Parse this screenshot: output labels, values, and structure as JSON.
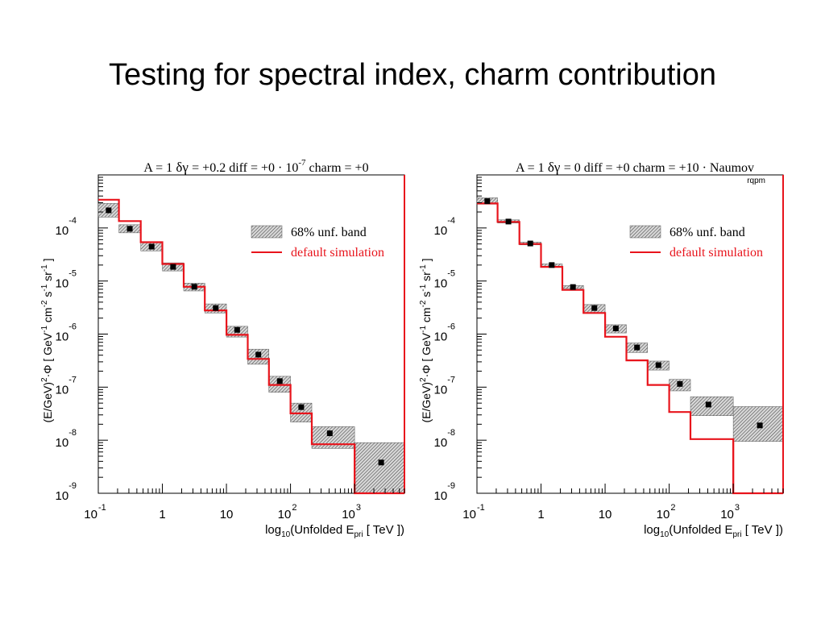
{
  "slide": {
    "title": "Testing for spectral index, charm contribution"
  },
  "chart_data": [
    {
      "type": "step",
      "panel_title": {
        "A": "A = 1",
        "dgamma": "= +0.2",
        "diff": "diff = +0 · 10",
        "diff_exp": "-7",
        "charm": "charm = +0"
      },
      "ylabel": {
        "p1": "(E/GeV)",
        "s1": "2",
        "p2": "·Φ [ GeV",
        "s2": "-1",
        "p3": " cm",
        "s3": "-2",
        "p4": " s",
        "s4": "-1",
        "p5": " sr",
        "s5": "-1",
        "p6": " ]"
      },
      "xlabel": {
        "pre": "log",
        "sub1": "10",
        "mid": "(Unfolded E",
        "sub2": "pri",
        "post": " [ TeV ])"
      },
      "xscale": "log",
      "yscale": "log",
      "xlim": [
        0.1,
        6000
      ],
      "ylim": [
        1e-09,
        0.001
      ],
      "x_ticks": [
        {
          "base": "10",
          "exp": "-1",
          "v": 0.1
        },
        {
          "base": "1",
          "exp": "",
          "v": 1
        },
        {
          "base": "10",
          "exp": "",
          "v": 10
        },
        {
          "base": "10",
          "exp": "2",
          "v": 100
        },
        {
          "base": "10",
          "exp": "3",
          "v": 1000
        }
      ],
      "y_ticks": [
        {
          "base": "10",
          "exp": "-4",
          "v": 0.0001
        },
        {
          "base": "10",
          "exp": "-5",
          "v": 1e-05
        },
        {
          "base": "10",
          "exp": "-6",
          "v": 1e-06
        },
        {
          "base": "10",
          "exp": "-7",
          "v": 1e-07
        },
        {
          "base": "10",
          "exp": "-8",
          "v": 1e-08
        },
        {
          "base": "10",
          "exp": "-9",
          "v": 1e-09
        }
      ],
      "legend": {
        "band_label": "68% unf. band",
        "line_label": "default simulation",
        "position": "top-right"
      },
      "colors": {
        "simulation": "#e8141c",
        "band": "#555555",
        "points": "#000000"
      },
      "band": [
        {
          "x_lo": 0.1,
          "x_hi": 0.21,
          "y_lo": 0.00016,
          "y_hi": 0.00029
        },
        {
          "x_lo": 0.21,
          "x_hi": 0.46,
          "y_lo": 8.1e-05,
          "y_hi": 0.000115
        },
        {
          "x_lo": 0.46,
          "x_hi": 1.0,
          "y_lo": 3.7e-05,
          "y_hi": 5.4e-05
        },
        {
          "x_lo": 1.0,
          "x_hi": 2.15,
          "y_lo": 1.55e-05,
          "y_hi": 2.2e-05
        },
        {
          "x_lo": 2.15,
          "x_hi": 4.6,
          "y_lo": 6.5e-06,
          "y_hi": 9.1e-06
        },
        {
          "x_lo": 4.6,
          "x_hi": 10,
          "y_lo": 2.5e-06,
          "y_hi": 3.7e-06
        },
        {
          "x_lo": 10,
          "x_hi": 21.5,
          "y_lo": 8.8e-07,
          "y_hi": 1.4e-06
        },
        {
          "x_lo": 21.5,
          "x_hi": 46,
          "y_lo": 2.7e-07,
          "y_hi": 5.2e-07
        },
        {
          "x_lo": 46,
          "x_hi": 100,
          "y_lo": 8e-08,
          "y_hi": 1.6e-07
        },
        {
          "x_lo": 100,
          "x_hi": 215,
          "y_lo": 2.2e-08,
          "y_hi": 5e-08
        },
        {
          "x_lo": 215,
          "x_hi": 1000,
          "y_lo": 7e-09,
          "y_hi": 1.8e-08
        },
        {
          "x_lo": 1000,
          "x_hi": 6000,
          "y_lo": 1e-09,
          "y_hi": 9e-09
        }
      ],
      "points": [
        {
          "x": 0.145,
          "y": 0.000215
        },
        {
          "x": 0.31,
          "y": 9.65e-05
        },
        {
          "x": 0.68,
          "y": 4.45e-05
        },
        {
          "x": 1.47,
          "y": 1.85e-05
        },
        {
          "x": 3.15,
          "y": 7.8e-06
        },
        {
          "x": 6.8,
          "y": 3.1e-06
        },
        {
          "x": 14.7,
          "y": 1.2e-06
        },
        {
          "x": 31.5,
          "y": 4.1e-07
        },
        {
          "x": 68,
          "y": 1.3e-07
        },
        {
          "x": 147,
          "y": 4.2e-08
        },
        {
          "x": 410,
          "y": 1.35e-08
        },
        {
          "x": 2600,
          "y": 3.8e-09
        }
      ],
      "simulation": [
        {
          "x_lo": 0.1,
          "x_hi": 0.21,
          "y": 0.00034
        },
        {
          "x_lo": 0.21,
          "x_hi": 0.46,
          "y": 0.000135
        },
        {
          "x_lo": 0.46,
          "x_hi": 1.0,
          "y": 5.4e-05
        },
        {
          "x_lo": 1.0,
          "x_hi": 2.15,
          "y": 2.1e-05
        },
        {
          "x_lo": 2.15,
          "x_hi": 4.6,
          "y": 7.8e-06
        },
        {
          "x_lo": 4.6,
          "x_hi": 10,
          "y": 2.8e-06
        },
        {
          "x_lo": 10,
          "x_hi": 21.5,
          "y": 9.7e-07
        },
        {
          "x_lo": 21.5,
          "x_hi": 46,
          "y": 3.4e-07
        },
        {
          "x_lo": 46,
          "x_hi": 100,
          "y": 1.1e-07
        },
        {
          "x_lo": 100,
          "x_hi": 215,
          "y": 3.2e-08
        },
        {
          "x_lo": 215,
          "x_hi": 1000,
          "y": 8.4e-09
        },
        {
          "x_lo": 1000,
          "x_hi": 6000,
          "y": 1e-09
        }
      ]
    },
    {
      "type": "step",
      "panel_title": {
        "A": "A = 1",
        "dgamma": "= 0",
        "diff": "diff = +0",
        "diff_exp": "",
        "charm": "charm = +10 · Naumov"
      },
      "subtitle": "rqpm",
      "ylabel": {
        "p1": "(E/GeV)",
        "s1": "2",
        "p2": "·Φ [ GeV",
        "s2": "-1",
        "p3": " cm",
        "s3": "-2",
        "p4": " s",
        "s4": "-1",
        "p5": " sr",
        "s5": "-1",
        "p6": " ]"
      },
      "xlabel": {
        "pre": "log",
        "sub1": "10",
        "mid": "(Unfolded E",
        "sub2": "pri",
        "post": " [ TeV ])"
      },
      "xscale": "log",
      "yscale": "log",
      "xlim": [
        0.1,
        6000
      ],
      "ylim": [
        1e-09,
        0.001
      ],
      "x_ticks": [
        {
          "base": "10",
          "exp": "-1",
          "v": 0.1
        },
        {
          "base": "1",
          "exp": "",
          "v": 1
        },
        {
          "base": "10",
          "exp": "",
          "v": 10
        },
        {
          "base": "10",
          "exp": "2",
          "v": 100
        },
        {
          "base": "10",
          "exp": "3",
          "v": 1000
        }
      ],
      "y_ticks": [
        {
          "base": "10",
          "exp": "-4",
          "v": 0.0001
        },
        {
          "base": "10",
          "exp": "-5",
          "v": 1e-05
        },
        {
          "base": "10",
          "exp": "-6",
          "v": 1e-06
        },
        {
          "base": "10",
          "exp": "-7",
          "v": 1e-07
        },
        {
          "base": "10",
          "exp": "-8",
          "v": 1e-08
        },
        {
          "base": "10",
          "exp": "-9",
          "v": 1e-09
        }
      ],
      "legend": {
        "band_label": "68% unf. band",
        "line_label": "default simulation",
        "position": "top-right"
      },
      "colors": {
        "simulation": "#e8141c",
        "band": "#555555",
        "points": "#000000"
      },
      "band": [
        {
          "x_lo": 0.1,
          "x_hi": 0.21,
          "y_lo": 0.00028,
          "y_hi": 0.00037
        },
        {
          "x_lo": 0.21,
          "x_hi": 0.46,
          "y_lo": 0.000124,
          "y_hi": 0.000142
        },
        {
          "x_lo": 0.46,
          "x_hi": 1.0,
          "y_lo": 4.8e-05,
          "y_hi": 5.4e-05
        },
        {
          "x_lo": 1.0,
          "x_hi": 2.15,
          "y_lo": 1.9e-05,
          "y_hi": 2.1e-05
        },
        {
          "x_lo": 2.15,
          "x_hi": 4.6,
          "y_lo": 7.2e-06,
          "y_hi": 8.2e-06
        },
        {
          "x_lo": 4.6,
          "x_hi": 10,
          "y_lo": 2.5e-06,
          "y_hi": 3.6e-06
        },
        {
          "x_lo": 10,
          "x_hi": 21.5,
          "y_lo": 1.05e-06,
          "y_hi": 1.5e-06
        },
        {
          "x_lo": 21.5,
          "x_hi": 46,
          "y_lo": 4.5e-07,
          "y_hi": 6.8e-07
        },
        {
          "x_lo": 46,
          "x_hi": 100,
          "y_lo": 2.1e-07,
          "y_hi": 3.1e-07
        },
        {
          "x_lo": 100,
          "x_hi": 215,
          "y_lo": 8.5e-08,
          "y_hi": 1.4e-07
        },
        {
          "x_lo": 215,
          "x_hi": 1000,
          "y_lo": 2.9e-08,
          "y_hi": 6.6e-08
        },
        {
          "x_lo": 1000,
          "x_hi": 6000,
          "y_lo": 9.5e-09,
          "y_hi": 4.3e-08
        }
      ],
      "points": [
        {
          "x": 0.145,
          "y": 0.00032
        },
        {
          "x": 0.31,
          "y": 0.000132
        },
        {
          "x": 0.68,
          "y": 5.1e-05
        },
        {
          "x": 1.47,
          "y": 2e-05
        },
        {
          "x": 3.15,
          "y": 7.7e-06
        },
        {
          "x": 6.8,
          "y": 3.1e-06
        },
        {
          "x": 14.7,
          "y": 1.28e-06
        },
        {
          "x": 31.5,
          "y": 5.6e-07
        },
        {
          "x": 68,
          "y": 2.6e-07
        },
        {
          "x": 147,
          "y": 1.15e-07
        },
        {
          "x": 410,
          "y": 4.7e-08
        },
        {
          "x": 2600,
          "y": 1.9e-08
        }
      ],
      "simulation": [
        {
          "x_lo": 0.1,
          "x_hi": 0.21,
          "y": 0.00029
        },
        {
          "x_lo": 0.21,
          "x_hi": 0.46,
          "y": 0.00013
        },
        {
          "x_lo": 0.46,
          "x_hi": 1.0,
          "y": 5e-05
        },
        {
          "x_lo": 1.0,
          "x_hi": 2.15,
          "y": 1.85e-05
        },
        {
          "x_lo": 2.15,
          "x_hi": 4.6,
          "y": 6.8e-06
        },
        {
          "x_lo": 4.6,
          "x_hi": 10,
          "y": 2.5e-06
        },
        {
          "x_lo": 10,
          "x_hi": 21.5,
          "y": 8.9e-07
        },
        {
          "x_lo": 21.5,
          "x_hi": 46,
          "y": 3.2e-07
        },
        {
          "x_lo": 46,
          "x_hi": 100,
          "y": 1.1e-07
        },
        {
          "x_lo": 100,
          "x_hi": 215,
          "y": 3.4e-08
        },
        {
          "x_lo": 215,
          "x_hi": 1000,
          "y": 1.05e-08
        },
        {
          "x_lo": 1000,
          "x_hi": 6000,
          "y": 1e-09
        }
      ]
    }
  ]
}
